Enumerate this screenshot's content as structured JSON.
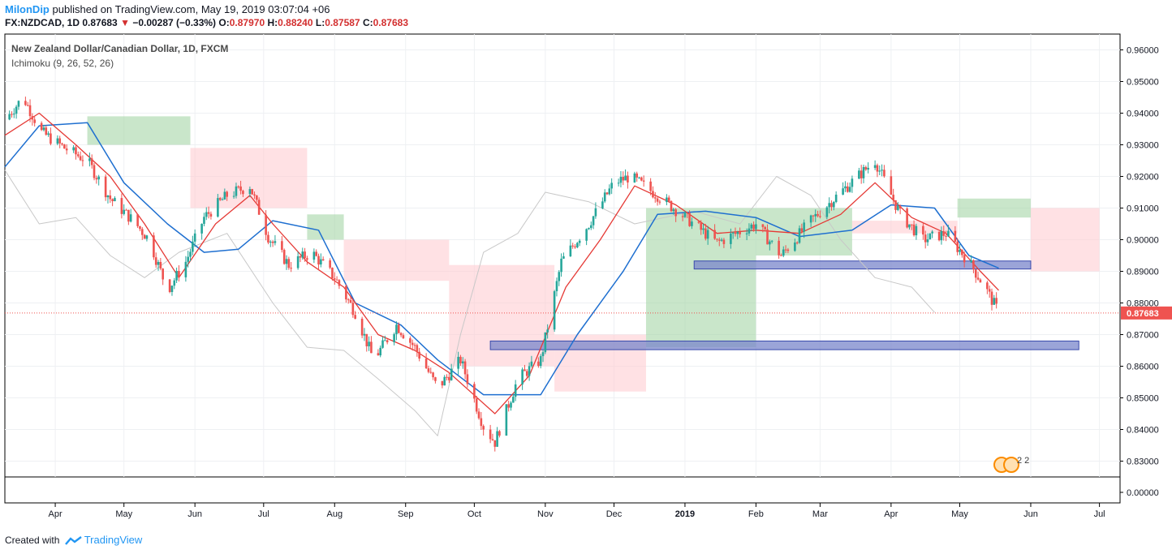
{
  "header": {
    "author": "MilonDip",
    "published_text": "published on TradingView.com, May 19, 2019 03:07:04 +06",
    "symbol": "FX:NZDCAD, 1D",
    "last": "0.87683",
    "change": "−0.00287 (−0.33%)",
    "open_label": "O:",
    "open": "0.87970",
    "high_label": "H:",
    "high": "0.88240",
    "low_label": "L:",
    "low": "0.87587",
    "close_label": "C:",
    "close": "0.87683"
  },
  "legend": {
    "title": "New Zealand Dollar/Canadian Dollar, 1D, FXCM",
    "indicator": "Ichimoku (9, 26, 52, 26)"
  },
  "footer": {
    "created_with": "Created with",
    "brand": "TradingView"
  },
  "colors": {
    "up": "#26a69a",
    "down": "#ef5350",
    "tenkan": "#e53935",
    "kijun": "#1e6fd0",
    "chikou": "#c8c8c8",
    "cloud_bull": "#a5d6a7",
    "cloud_bear": "#ffcdd2",
    "zone": "#5c6bc0",
    "price_line": "#ef5350",
    "author": "#2196f3"
  },
  "chart_data": {
    "type": "candlestick",
    "price_axis": {
      "min": 0.825,
      "max": 0.965,
      "ticks": [
        "0.96000",
        "0.95000",
        "0.94000",
        "0.93000",
        "0.92000",
        "0.91000",
        "0.90000",
        "0.89000",
        "0.88000",
        "0.87000",
        "0.86000",
        "0.85000",
        "0.84000",
        "0.83000"
      ],
      "last_price_label": "0.87683"
    },
    "sub_axis": {
      "ticks": [
        "0.00000"
      ]
    },
    "time_axis": {
      "start": "2018-03-10",
      "end": "2019-07-10",
      "labels": [
        {
          "date": "2018-04-01",
          "text": "Apr",
          "bold": false
        },
        {
          "date": "2018-05-01",
          "text": "May",
          "bold": false
        },
        {
          "date": "2018-06-01",
          "text": "Jun",
          "bold": false
        },
        {
          "date": "2018-07-01",
          "text": "Jul",
          "bold": false
        },
        {
          "date": "2018-08-01",
          "text": "Aug",
          "bold": false
        },
        {
          "date": "2018-09-01",
          "text": "Sep",
          "bold": false
        },
        {
          "date": "2018-10-01",
          "text": "Oct",
          "bold": false
        },
        {
          "date": "2018-11-01",
          "text": "Nov",
          "bold": false
        },
        {
          "date": "2018-12-01",
          "text": "Dec",
          "bold": false
        },
        {
          "date": "2019-01-01",
          "text": "2019",
          "bold": true
        },
        {
          "date": "2019-02-01",
          "text": "Feb",
          "bold": false
        },
        {
          "date": "2019-03-01",
          "text": "Mar",
          "bold": false
        },
        {
          "date": "2019-04-01",
          "text": "Apr",
          "bold": false
        },
        {
          "date": "2019-05-01",
          "text": "May",
          "bold": false
        },
        {
          "date": "2019-06-01",
          "text": "Jun",
          "bold": false
        },
        {
          "date": "2019-07-01",
          "text": "Jul",
          "bold": false
        }
      ]
    },
    "close_series": [
      {
        "date": "2018-03-10",
        "value": 0.938
      },
      {
        "date": "2018-03-18",
        "value": 0.945
      },
      {
        "date": "2018-03-26",
        "value": 0.934
      },
      {
        "date": "2018-04-05",
        "value": 0.929
      },
      {
        "date": "2018-04-15",
        "value": 0.925
      },
      {
        "date": "2018-04-25",
        "value": 0.913
      },
      {
        "date": "2018-05-05",
        "value": 0.906
      },
      {
        "date": "2018-05-12",
        "value": 0.9
      },
      {
        "date": "2018-05-20",
        "value": 0.884
      },
      {
        "date": "2018-05-28",
        "value": 0.893
      },
      {
        "date": "2018-06-05",
        "value": 0.907
      },
      {
        "date": "2018-06-15",
        "value": 0.914
      },
      {
        "date": "2018-06-25",
        "value": 0.917
      },
      {
        "date": "2018-07-03",
        "value": 0.901
      },
      {
        "date": "2018-07-12",
        "value": 0.892
      },
      {
        "date": "2018-07-22",
        "value": 0.896
      },
      {
        "date": "2018-08-01",
        "value": 0.888
      },
      {
        "date": "2018-08-10",
        "value": 0.877
      },
      {
        "date": "2018-08-18",
        "value": 0.862
      },
      {
        "date": "2018-08-28",
        "value": 0.873
      },
      {
        "date": "2018-09-05",
        "value": 0.866
      },
      {
        "date": "2018-09-15",
        "value": 0.853
      },
      {
        "date": "2018-09-25",
        "value": 0.862
      },
      {
        "date": "2018-10-05",
        "value": 0.841
      },
      {
        "date": "2018-10-10",
        "value": 0.836
      },
      {
        "date": "2018-10-20",
        "value": 0.856
      },
      {
        "date": "2018-10-30",
        "value": 0.862
      },
      {
        "date": "2018-11-08",
        "value": 0.893
      },
      {
        "date": "2018-11-20",
        "value": 0.905
      },
      {
        "date": "2018-12-01",
        "value": 0.918
      },
      {
        "date": "2018-12-08",
        "value": 0.92
      },
      {
        "date": "2018-12-20",
        "value": 0.914
      },
      {
        "date": "2019-01-03",
        "value": 0.906
      },
      {
        "date": "2019-01-15",
        "value": 0.899
      },
      {
        "date": "2019-02-01",
        "value": 0.905
      },
      {
        "date": "2019-02-12",
        "value": 0.895
      },
      {
        "date": "2019-02-25",
        "value": 0.906
      },
      {
        "date": "2019-03-10",
        "value": 0.915
      },
      {
        "date": "2019-03-25",
        "value": 0.925
      },
      {
        "date": "2019-04-05",
        "value": 0.908
      },
      {
        "date": "2019-04-15",
        "value": 0.9
      },
      {
        "date": "2019-04-25",
        "value": 0.902
      },
      {
        "date": "2019-05-05",
        "value": 0.893
      },
      {
        "date": "2019-05-12",
        "value": 0.885
      },
      {
        "date": "2019-05-18",
        "value": 0.877
      }
    ],
    "tenkan_sen": [
      {
        "date": "2018-03-10",
        "value": 0.933
      },
      {
        "date": "2018-03-25",
        "value": 0.94
      },
      {
        "date": "2018-04-10",
        "value": 0.93
      },
      {
        "date": "2018-04-25",
        "value": 0.92
      },
      {
        "date": "2018-05-10",
        "value": 0.905
      },
      {
        "date": "2018-05-25",
        "value": 0.888
      },
      {
        "date": "2018-06-10",
        "value": 0.905
      },
      {
        "date": "2018-06-25",
        "value": 0.914
      },
      {
        "date": "2018-07-05",
        "value": 0.905
      },
      {
        "date": "2018-07-20",
        "value": 0.893
      },
      {
        "date": "2018-08-05",
        "value": 0.885
      },
      {
        "date": "2018-08-20",
        "value": 0.87
      },
      {
        "date": "2018-09-05",
        "value": 0.865
      },
      {
        "date": "2018-09-20",
        "value": 0.858
      },
      {
        "date": "2018-10-10",
        "value": 0.845
      },
      {
        "date": "2018-10-25",
        "value": 0.857
      },
      {
        "date": "2018-11-10",
        "value": 0.885
      },
      {
        "date": "2018-11-25",
        "value": 0.9
      },
      {
        "date": "2018-12-10",
        "value": 0.917
      },
      {
        "date": "2018-12-28",
        "value": 0.911
      },
      {
        "date": "2019-01-15",
        "value": 0.902
      },
      {
        "date": "2019-02-01",
        "value": 0.903
      },
      {
        "date": "2019-02-20",
        "value": 0.902
      },
      {
        "date": "2019-03-10",
        "value": 0.908
      },
      {
        "date": "2019-03-25",
        "value": 0.918
      },
      {
        "date": "2019-04-10",
        "value": 0.907
      },
      {
        "date": "2019-04-25",
        "value": 0.902
      },
      {
        "date": "2019-05-10",
        "value": 0.89
      },
      {
        "date": "2019-05-18",
        "value": 0.884
      }
    ],
    "kijun_sen": [
      {
        "date": "2018-03-10",
        "value": 0.923
      },
      {
        "date": "2018-03-25",
        "value": 0.936
      },
      {
        "date": "2018-04-15",
        "value": 0.937
      },
      {
        "date": "2018-05-01",
        "value": 0.918
      },
      {
        "date": "2018-05-20",
        "value": 0.905
      },
      {
        "date": "2018-06-05",
        "value": 0.896
      },
      {
        "date": "2018-06-20",
        "value": 0.897
      },
      {
        "date": "2018-07-05",
        "value": 0.906
      },
      {
        "date": "2018-07-25",
        "value": 0.903
      },
      {
        "date": "2018-08-10",
        "value": 0.88
      },
      {
        "date": "2018-08-30",
        "value": 0.873
      },
      {
        "date": "2018-09-15",
        "value": 0.862
      },
      {
        "date": "2018-10-05",
        "value": 0.851
      },
      {
        "date": "2018-10-30",
        "value": 0.851
      },
      {
        "date": "2018-11-15",
        "value": 0.87
      },
      {
        "date": "2018-12-05",
        "value": 0.89
      },
      {
        "date": "2018-12-20",
        "value": 0.908
      },
      {
        "date": "2019-01-10",
        "value": 0.909
      },
      {
        "date": "2019-02-01",
        "value": 0.907
      },
      {
        "date": "2019-02-20",
        "value": 0.901
      },
      {
        "date": "2019-03-15",
        "value": 0.903
      },
      {
        "date": "2019-04-01",
        "value": 0.911
      },
      {
        "date": "2019-04-20",
        "value": 0.91
      },
      {
        "date": "2019-05-05",
        "value": 0.895
      },
      {
        "date": "2019-05-18",
        "value": 0.891
      }
    ],
    "chikou_span": [
      {
        "date": "2018-03-10",
        "value": 0.922
      },
      {
        "date": "2018-03-25",
        "value": 0.905
      },
      {
        "date": "2018-04-10",
        "value": 0.907
      },
      {
        "date": "2018-04-25",
        "value": 0.895
      },
      {
        "date": "2018-05-10",
        "value": 0.888
      },
      {
        "date": "2018-05-25",
        "value": 0.896
      },
      {
        "date": "2018-06-15",
        "value": 0.902
      },
      {
        "date": "2018-07-05",
        "value": 0.88
      },
      {
        "date": "2018-07-20",
        "value": 0.866
      },
      {
        "date": "2018-08-05",
        "value": 0.865
      },
      {
        "date": "2018-08-20",
        "value": 0.856
      },
      {
        "date": "2018-09-05",
        "value": 0.846
      },
      {
        "date": "2018-09-15",
        "value": 0.838
      },
      {
        "date": "2018-09-25",
        "value": 0.87
      },
      {
        "date": "2018-10-05",
        "value": 0.896
      },
      {
        "date": "2018-10-20",
        "value": 0.902
      },
      {
        "date": "2018-11-01",
        "value": 0.915
      },
      {
        "date": "2018-11-20",
        "value": 0.912
      },
      {
        "date": "2018-12-10",
        "value": 0.905
      },
      {
        "date": "2019-01-05",
        "value": 0.909
      },
      {
        "date": "2019-01-25",
        "value": 0.905
      },
      {
        "date": "2019-02-10",
        "value": 0.92
      },
      {
        "date": "2019-02-25",
        "value": 0.914
      },
      {
        "date": "2019-03-10",
        "value": 0.9
      },
      {
        "date": "2019-03-25",
        "value": 0.888
      },
      {
        "date": "2019-04-10",
        "value": 0.885
      },
      {
        "date": "2019-04-20",
        "value": 0.877
      }
    ],
    "cloud_bands": [
      {
        "kind": "bull",
        "from": "2018-04-15",
        "to": "2018-05-30",
        "top": 0.939,
        "bottom": 0.93
      },
      {
        "kind": "bear",
        "from": "2018-05-30",
        "to": "2018-07-20",
        "top": 0.929,
        "bottom": 0.91
      },
      {
        "kind": "bull",
        "from": "2018-07-20",
        "to": "2018-08-05",
        "top": 0.908,
        "bottom": 0.9
      },
      {
        "kind": "bear",
        "from": "2018-08-05",
        "to": "2018-09-20",
        "top": 0.9,
        "bottom": 0.887
      },
      {
        "kind": "bear",
        "from": "2018-09-20",
        "to": "2018-11-05",
        "top": 0.892,
        "bottom": 0.86
      },
      {
        "kind": "bear",
        "from": "2018-11-05",
        "to": "2018-12-15",
        "top": 0.87,
        "bottom": 0.852
      },
      {
        "kind": "bull",
        "from": "2018-12-15",
        "to": "2019-02-01",
        "top": 0.91,
        "bottom": 0.866
      },
      {
        "kind": "bull",
        "from": "2019-02-01",
        "to": "2019-03-15",
        "top": 0.91,
        "bottom": 0.895
      },
      {
        "kind": "bear",
        "from": "2019-03-15",
        "to": "2019-04-30",
        "top": 0.906,
        "bottom": 0.902
      },
      {
        "kind": "bull",
        "from": "2019-04-30",
        "to": "2019-06-01",
        "top": 0.913,
        "bottom": 0.907
      },
      {
        "kind": "bear",
        "from": "2019-06-01",
        "to": "2019-07-01",
        "top": 0.91,
        "bottom": 0.89
      }
    ],
    "zones": [
      {
        "from": "2019-01-05",
        "to": "2019-06-01",
        "top": 0.8925,
        "bottom": 0.8915
      },
      {
        "from": "2018-10-08",
        "to": "2019-06-22",
        "top": 0.8672,
        "bottom": 0.866
      }
    ]
  }
}
